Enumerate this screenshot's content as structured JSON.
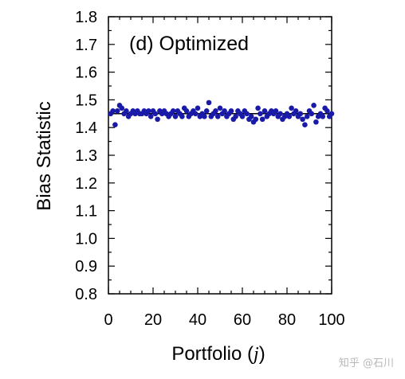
{
  "chart_data": {
    "type": "scatter",
    "title": "(d) Optimized",
    "xlabel": "Portfolio (j)",
    "xlabel_prefix": "Portfolio (",
    "xlabel_var": "j",
    "xlabel_suffix": ")",
    "ylabel": "Bias Statistic",
    "xlim": [
      0,
      100
    ],
    "ylim": [
      0.8,
      1.8
    ],
    "xticks": [
      "0",
      "20",
      "40",
      "60",
      "80",
      "100"
    ],
    "yticks": [
      "0.8",
      "0.9",
      "1.0",
      "1.1",
      "1.2",
      "1.3",
      "1.4",
      "1.5",
      "1.6",
      "1.7",
      "1.8"
    ],
    "reference_line": 1.45,
    "marker_color": "#1a1aa8",
    "grid": false,
    "series": [
      {
        "x": [
          1,
          2,
          3,
          4,
          5,
          6,
          7,
          8,
          9,
          10,
          11,
          12,
          13,
          14,
          15,
          16,
          17,
          18,
          19,
          20,
          21,
          22,
          23,
          24,
          25,
          26,
          27,
          28,
          29,
          30,
          31,
          32,
          33,
          34,
          35,
          36,
          37,
          38,
          39,
          40,
          41,
          42,
          43,
          44,
          45,
          46,
          47,
          48,
          49,
          50,
          51,
          52,
          53,
          54,
          55,
          56,
          57,
          58,
          59,
          60,
          61,
          62,
          63,
          64,
          65,
          66,
          67,
          68,
          69,
          70,
          71,
          72,
          73,
          74,
          75,
          76,
          77,
          78,
          79,
          80,
          81,
          82,
          83,
          84,
          85,
          86,
          87,
          88,
          89,
          90,
          91,
          92,
          93,
          94,
          95,
          96,
          97,
          98,
          99,
          100
        ],
        "y": [
          1.45,
          1.46,
          1.41,
          1.46,
          1.48,
          1.47,
          1.45,
          1.46,
          1.44,
          1.45,
          1.46,
          1.45,
          1.46,
          1.45,
          1.45,
          1.46,
          1.45,
          1.46,
          1.44,
          1.46,
          1.45,
          1.43,
          1.46,
          1.45,
          1.46,
          1.45,
          1.44,
          1.45,
          1.46,
          1.44,
          1.46,
          1.45,
          1.44,
          1.47,
          1.46,
          1.44,
          1.45,
          1.46,
          1.45,
          1.47,
          1.44,
          1.45,
          1.44,
          1.46,
          1.49,
          1.44,
          1.45,
          1.46,
          1.44,
          1.47,
          1.45,
          1.46,
          1.44,
          1.45,
          1.46,
          1.43,
          1.44,
          1.46,
          1.45,
          1.44,
          1.46,
          1.45,
          1.43,
          1.44,
          1.42,
          1.43,
          1.47,
          1.45,
          1.43,
          1.46,
          1.44,
          1.45,
          1.46,
          1.45,
          1.46,
          1.44,
          1.45,
          1.43,
          1.44,
          1.45,
          1.44,
          1.47,
          1.45,
          1.46,
          1.44,
          1.45,
          1.43,
          1.41,
          1.44,
          1.46,
          1.45,
          1.48,
          1.42,
          1.44,
          1.45,
          1.44,
          1.47,
          1.46,
          1.44,
          1.45
        ]
      }
    ]
  },
  "watermark": "知乎 @石川"
}
